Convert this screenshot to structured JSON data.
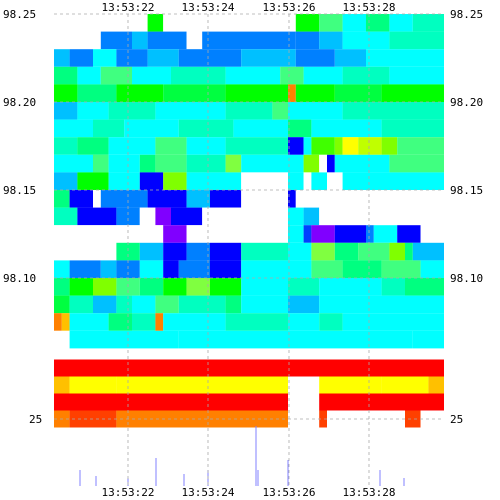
{
  "chart_data": {
    "type": "heatmap",
    "title": "",
    "x_ticks_top": [
      "13:53:22",
      "13:53:24",
      "13:53:26",
      "13:53:28"
    ],
    "x_ticks_bottom": [
      "13:53:22",
      "13:53:24",
      "13:53:26",
      "13:53:28"
    ],
    "y_ticks_left": [
      "98.25",
      "98.20",
      "98.15",
      "98.10",
      "25"
    ],
    "y_ticks_right": [
      "98.25",
      "98.20",
      "98.15",
      "98.10",
      "25"
    ],
    "grid": true,
    "palette": [
      "#ff0000",
      "#ff8000",
      "#ffff00",
      "#80ff00",
      "#00ff00",
      "#00ffff",
      "#0080ff",
      "#0000ff",
      "#8000ff"
    ],
    "bands": [
      {
        "price": 98.245,
        "cells": [
          [
            13.5322,
            "#00ff00"
          ],
          [
            13.53224,
            "#ffffff"
          ],
          [
            13.53258,
            "#00ff00"
          ],
          [
            13.53264,
            "#40ff80"
          ],
          [
            13.5327,
            "#00ffff"
          ],
          [
            13.53276,
            "#00ff80"
          ],
          [
            13.53282,
            "#00ffff"
          ],
          [
            13.53288,
            "#00ffc0"
          ]
        ]
      },
      {
        "price": 98.235,
        "cells": [
          [
            13.53208,
            "#0080ff"
          ],
          [
            13.53216,
            "#00c0ff"
          ],
          [
            13.5322,
            "#0080ff"
          ],
          [
            13.5323,
            "#ffffff"
          ],
          [
            13.53234,
            "#0080ff"
          ],
          [
            13.53258,
            "#0080ff"
          ],
          [
            13.53264,
            "#00c0ff"
          ],
          [
            13.5327,
            "#00ffff"
          ],
          [
            13.53282,
            "#00ffc0"
          ]
        ]
      },
      {
        "price": 98.225,
        "cells": [
          [
            13.53196,
            "#00c0ff"
          ],
          [
            13.532,
            "#0080ff"
          ],
          [
            13.53206,
            "#00ffff"
          ],
          [
            13.53212,
            "#0080ff"
          ],
          [
            13.5322,
            "#00c0ff"
          ],
          [
            13.53228,
            "#0080ff"
          ],
          [
            13.53244,
            "#00c0ff"
          ],
          [
            13.53258,
            "#0080ff"
          ],
          [
            13.53268,
            "#00c0ff"
          ],
          [
            13.53276,
            "#00ffff"
          ]
        ]
      },
      {
        "price": 98.215,
        "cells": [
          [
            13.53196,
            "#00ff80"
          ],
          [
            13.53202,
            "#00ffff"
          ],
          [
            13.53208,
            "#40ff80"
          ],
          [
            13.53216,
            "#00ffff"
          ],
          [
            13.53226,
            "#00ffc0"
          ],
          [
            13.5324,
            "#00ffff"
          ],
          [
            13.53254,
            "#40ff80"
          ],
          [
            13.5326,
            "#00ffff"
          ],
          [
            13.5327,
            "#00ffc0"
          ],
          [
            13.53282,
            "#00ffff"
          ]
        ]
      },
      {
        "price": 98.205,
        "cells": [
          [
            13.53196,
            "#00ff00"
          ],
          [
            13.53202,
            "#00ff80"
          ],
          [
            13.53212,
            "#00ff00"
          ],
          [
            13.53224,
            "#00ff40"
          ],
          [
            13.5324,
            "#00ff00"
          ],
          [
            13.53256,
            "#ff8000"
          ],
          [
            13.53258,
            "#00ff00"
          ],
          [
            13.53268,
            "#00ff40"
          ],
          [
            13.5328,
            "#00ff00"
          ]
        ]
      },
      {
        "price": 98.195,
        "cells": [
          [
            13.53196,
            "#00c0ff"
          ],
          [
            13.53202,
            "#00ffff"
          ],
          [
            13.5321,
            "#00ffc0"
          ],
          [
            13.53222,
            "#00ffff"
          ],
          [
            13.5324,
            "#00ffc0"
          ],
          [
            13.53252,
            "#40ff80"
          ],
          [
            13.53256,
            "#00ffff"
          ],
          [
            13.5327,
            "#00ffc0"
          ]
        ]
      },
      {
        "price": 98.185,
        "cells": [
          [
            13.53196,
            "#00ffff"
          ],
          [
            13.53206,
            "#00ffc0"
          ],
          [
            13.53214,
            "#00ffff"
          ],
          [
            13.53228,
            "#00ffc0"
          ],
          [
            13.53242,
            "#00ffff"
          ],
          [
            13.53256,
            "#00ff80"
          ],
          [
            13.53262,
            "#00ffff"
          ],
          [
            13.5328,
            "#00ffc0"
          ]
        ]
      },
      {
        "price": 98.175,
        "cells": [
          [
            13.53196,
            "#00ffc0"
          ],
          [
            13.53202,
            "#00ff80"
          ],
          [
            13.5321,
            "#00ffff"
          ],
          [
            13.53222,
            "#40ff80"
          ],
          [
            13.5323,
            "#00ffff"
          ],
          [
            13.5324,
            "#00ffc0"
          ],
          [
            13.53256,
            "#0000ff"
          ],
          [
            13.5326,
            "#00ffff"
          ],
          [
            13.53262,
            "#40ff00"
          ],
          [
            13.53268,
            "#80ff00"
          ],
          [
            13.5327,
            "#ffff00"
          ],
          [
            13.53274,
            "#c0ff00"
          ],
          [
            13.5328,
            "#80ff00"
          ],
          [
            13.53284,
            "#40ff80"
          ]
        ]
      },
      {
        "price": 98.165,
        "cells": [
          [
            13.53196,
            "#00ffff"
          ],
          [
            13.53206,
            "#40ff80"
          ],
          [
            13.5321,
            "#00ffff"
          ],
          [
            13.53218,
            "#00ff80"
          ],
          [
            13.53222,
            "#40ff80"
          ],
          [
            13.5323,
            "#00ffc0"
          ],
          [
            13.5324,
            "#80ff40"
          ],
          [
            13.53244,
            "#00ffff"
          ],
          [
            13.53256,
            "#00ffff"
          ],
          [
            13.5326,
            "#80ff00"
          ],
          [
            13.53264,
            "#ffffff"
          ],
          [
            13.53266,
            "#0000ff"
          ],
          [
            13.53268,
            "#00ffff"
          ],
          [
            13.53282,
            "#40ff80"
          ]
        ]
      },
      {
        "price": 98.155,
        "cells": [
          [
            13.53196,
            "#00c0ff"
          ],
          [
            13.53202,
            "#00ff00"
          ],
          [
            13.5321,
            "#00ffff"
          ],
          [
            13.53218,
            "#0000ff"
          ],
          [
            13.53224,
            "#80ff00"
          ],
          [
            13.5323,
            "#00ffff"
          ],
          [
            13.53244,
            "#ffffff"
          ],
          [
            13.53256,
            "#00ffff"
          ],
          [
            13.5326,
            "#ffffff"
          ],
          [
            13.53262,
            "#00ffff"
          ],
          [
            13.53266,
            "#ffffff"
          ],
          [
            13.5327,
            "#00ffff"
          ]
        ]
      },
      {
        "price": 98.145,
        "cells": [
          [
            13.53196,
            "#00ff80"
          ],
          [
            13.532,
            "#0000ff"
          ],
          [
            13.53206,
            "#ffffff"
          ],
          [
            13.53208,
            "#0080ff"
          ],
          [
            13.5322,
            "#0000ff"
          ],
          [
            13.5323,
            "#00c0ff"
          ],
          [
            13.53236,
            "#0000ff"
          ],
          [
            13.53244,
            "#ffffff"
          ],
          [
            13.53256,
            "#0000ff"
          ],
          [
            13.53258,
            "#ffffff"
          ],
          [
            13.53262,
            "#ffffff"
          ],
          [
            13.53266,
            "#ffffff"
          ],
          [
            13.53288,
            "#ffffff"
          ]
        ]
      },
      {
        "price": 98.135,
        "cells": [
          [
            13.53196,
            "#00ffc0"
          ],
          [
            13.53202,
            "#0000ff"
          ],
          [
            13.53212,
            "#0080ff"
          ],
          [
            13.53218,
            "#ffffff"
          ],
          [
            13.53222,
            "#8000ff"
          ],
          [
            13.53226,
            "#0000ff"
          ],
          [
            13.53234,
            "#ffffff"
          ],
          [
            13.53256,
            "#00ffff"
          ],
          [
            13.5326,
            "#00c0ff"
          ],
          [
            13.53264,
            "#ffffff"
          ],
          [
            13.53288,
            "#ffffff"
          ]
        ]
      },
      {
        "price": 98.125,
        "cells": [
          [
            13.53196,
            "#ffffff"
          ],
          [
            13.53202,
            "#ffffff"
          ],
          [
            13.5321,
            "#ffffff"
          ],
          [
            13.53216,
            "#ffffff"
          ],
          [
            13.53224,
            "#8000ff"
          ],
          [
            13.5323,
            "#ffffff"
          ],
          [
            13.53256,
            "#00ffff"
          ],
          [
            13.5326,
            "#0040ff"
          ],
          [
            13.53262,
            "#8000ff"
          ],
          [
            13.53268,
            "#0000ff"
          ],
          [
            13.53276,
            "#0080ff"
          ],
          [
            13.53278,
            "#00ffff"
          ],
          [
            13.53284,
            "#0000ff"
          ],
          [
            13.5329,
            "#ffffff"
          ]
        ]
      },
      {
        "price": 98.115,
        "cells": [
          [
            13.53196,
            "#ffffff"
          ],
          [
            13.53202,
            "#ffffff"
          ],
          [
            13.53208,
            "#ffffff"
          ],
          [
            13.53212,
            "#00ff80"
          ],
          [
            13.53218,
            "#00c0ff"
          ],
          [
            13.53224,
            "#0000ff"
          ],
          [
            13.5323,
            "#0080ff"
          ],
          [
            13.53236,
            "#0000ff"
          ],
          [
            13.53244,
            "#00ffc0"
          ],
          [
            13.53256,
            "#00ffff"
          ],
          [
            13.53262,
            "#80ff40"
          ],
          [
            13.53268,
            "#00ff80"
          ],
          [
            13.53274,
            "#40ff80"
          ],
          [
            13.53282,
            "#80ff00"
          ],
          [
            13.53286,
            "#00ff80"
          ],
          [
            13.53288,
            "#00c0ff"
          ]
        ]
      },
      {
        "price": 98.105,
        "cells": [
          [
            13.53196,
            "#00ffff"
          ],
          [
            13.532,
            "#0080ff"
          ],
          [
            13.53208,
            "#00c0ff"
          ],
          [
            13.53212,
            "#0080ff"
          ],
          [
            13.53218,
            "#00ffff"
          ],
          [
            13.53224,
            "#0000ff"
          ],
          [
            13.53228,
            "#0080ff"
          ],
          [
            13.53236,
            "#0000ff"
          ],
          [
            13.53244,
            "#00ffff"
          ],
          [
            13.53256,
            "#00ffff"
          ],
          [
            13.53262,
            "#40ff80"
          ],
          [
            13.5327,
            "#00ff80"
          ],
          [
            13.5328,
            "#40ff80"
          ],
          [
            13.5329,
            "#00ffff"
          ]
        ]
      },
      {
        "price": 98.095,
        "cells": [
          [
            13.53196,
            "#00ff80"
          ],
          [
            13.532,
            "#00ff00"
          ],
          [
            13.53206,
            "#80ff00"
          ],
          [
            13.53212,
            "#40ff80"
          ],
          [
            13.53218,
            "#00ff80"
          ],
          [
            13.53224,
            "#00ff00"
          ],
          [
            13.5323,
            "#80ff40"
          ],
          [
            13.53236,
            "#00ff00"
          ],
          [
            13.53244,
            "#00ffff"
          ],
          [
            13.53256,
            "#00ffc0"
          ],
          [
            13.53264,
            "#00ffff"
          ],
          [
            13.5328,
            "#00ffc0"
          ],
          [
            13.53286,
            "#00ff80"
          ]
        ]
      },
      {
        "price": 98.085,
        "cells": [
          [
            13.53196,
            "#00ff40"
          ],
          [
            13.532,
            "#00ffc0"
          ],
          [
            13.53206,
            "#00c0ff"
          ],
          [
            13.53212,
            "#00ffc0"
          ],
          [
            13.53216,
            "#00ffff"
          ],
          [
            13.53222,
            "#40ff80"
          ],
          [
            13.53228,
            "#00ffc0"
          ],
          [
            13.5324,
            "#00ff80"
          ],
          [
            13.53244,
            "#00ffff"
          ],
          [
            13.53256,
            "#00c0ff"
          ],
          [
            13.53264,
            "#00ffff"
          ]
        ]
      },
      {
        "price": 98.075,
        "cells": [
          [
            13.53196,
            "#ff8000"
          ],
          [
            13.53198,
            "#ffc000"
          ],
          [
            13.532,
            "#00ffff"
          ],
          [
            13.5321,
            "#00ff80"
          ],
          [
            13.53216,
            "#00ffc0"
          ],
          [
            13.53222,
            "#ff8000"
          ],
          [
            13.53224,
            "#00ffff"
          ],
          [
            13.5324,
            "#00ffc0"
          ],
          [
            13.53256,
            "#00ffff"
          ],
          [
            13.53264,
            "#00ffc0"
          ],
          [
            13.5327,
            "#00ffff"
          ]
        ]
      },
      {
        "price": 98.065,
        "cells": [
          [
            13.53196,
            "#ffffff"
          ],
          [
            13.532,
            "#00ffff"
          ],
          [
            13.53228,
            "#00ffff"
          ],
          [
            13.53256,
            "#00ffff"
          ],
          [
            13.53288,
            "#00ffff"
          ]
        ]
      },
      {
        "price": 26.5,
        "cells": [
          [
            13.53196,
            "#ff0000"
          ]
        ]
      },
      {
        "price": 26.0,
        "cells": [
          [
            13.53196,
            "#ffc000"
          ],
          [
            13.532,
            "#ffff00"
          ],
          [
            13.53212,
            "#ffff00"
          ],
          [
            13.53246,
            "#ffff00"
          ],
          [
            13.53256,
            "#ffffff"
          ],
          [
            13.53264,
            "#ffff00"
          ],
          [
            13.5328,
            "#ffff00"
          ],
          [
            13.53292,
            "#ffc000"
          ]
        ]
      },
      {
        "price": 25.5,
        "cells": [
          [
            13.53196,
            "#ff0000"
          ],
          [
            13.53256,
            "#ffffff"
          ],
          [
            13.53264,
            "#ff0000"
          ]
        ]
      },
      {
        "price": 25.0,
        "cells": [
          [
            13.53196,
            "#ff8000"
          ],
          [
            13.532,
            "#ff4000"
          ],
          [
            13.53212,
            "#ff8000"
          ],
          [
            13.53256,
            "#ffffff"
          ],
          [
            13.53264,
            "#ff4000"
          ],
          [
            13.53266,
            "#ffffff"
          ],
          [
            13.53286,
            "#ff4000"
          ],
          [
            13.5329,
            "#ffffff"
          ]
        ]
      }
    ]
  }
}
